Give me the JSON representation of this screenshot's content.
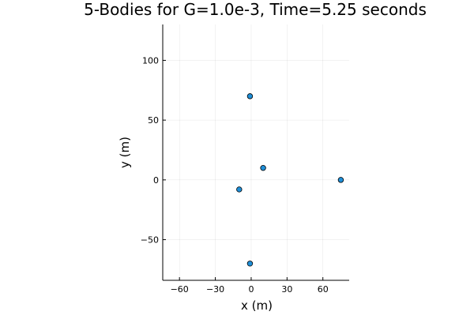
{
  "chart_data": {
    "type": "scatter",
    "title": "5-Bodies for G=1.0e-3, Time=5.25 seconds",
    "xlabel": "x (m)",
    "ylabel": "y (m)",
    "xlim": [
      -74,
      82
    ],
    "ylim": [
      -84,
      130
    ],
    "xticks": [
      -60,
      -30,
      0,
      30,
      60
    ],
    "xtick_labels": [
      "−60",
      "−30",
      "0",
      "30",
      "60"
    ],
    "yticks": [
      -50,
      0,
      50,
      100
    ],
    "ytick_labels": [
      "−50",
      "0",
      "50",
      "100"
    ],
    "grid": true,
    "legend": "none",
    "marker_color": "#1f8fd8",
    "series": [
      {
        "x": [
          -1,
          10,
          -10,
          75,
          -1
        ],
        "y": [
          70,
          10,
          -8,
          0,
          -70
        ]
      }
    ]
  }
}
